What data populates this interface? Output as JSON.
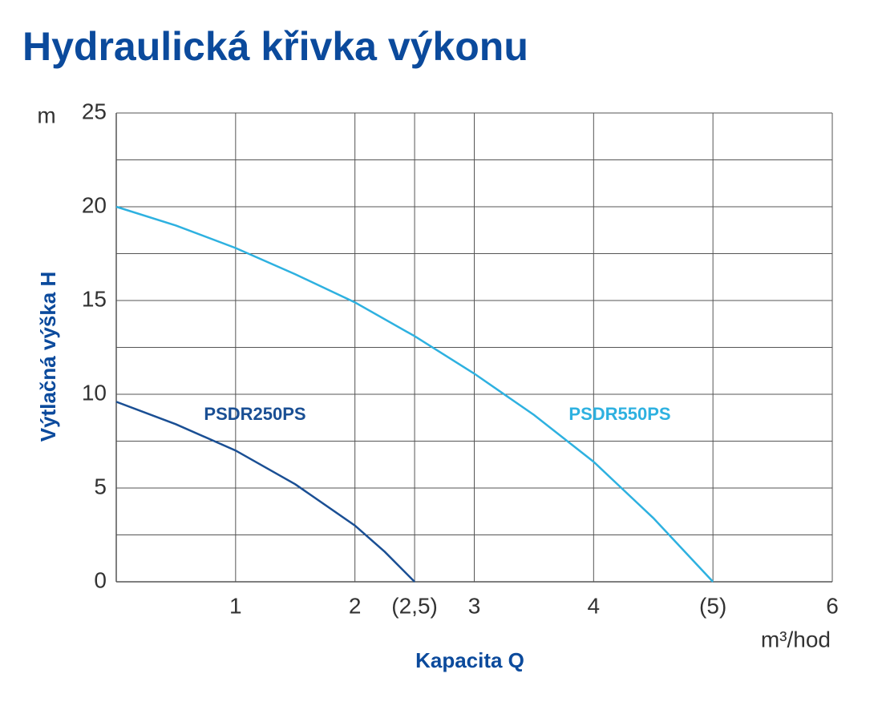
{
  "chart_data": {
    "type": "line",
    "title": "Hydraulická křivka výkonu",
    "y_label": "Výtlačná výška H",
    "y_unit": "m",
    "x_label": "Kapacita Q",
    "x_unit": "m³/hod",
    "xlim": [
      0,
      6
    ],
    "ylim": [
      0,
      25
    ],
    "xticks": [
      1,
      2,
      {
        "value": 2.5,
        "label": "(2,5)"
      },
      3,
      4,
      {
        "value": 5,
        "label": "(5)"
      },
      6
    ],
    "yticks": [
      0,
      5,
      10,
      15,
      20,
      25
    ],
    "grid": true,
    "series": [
      {
        "name": "PSDR250PS",
        "color": "#1a4f94",
        "x": [
          0,
          0.5,
          1,
          1.5,
          2,
          2.25,
          2.5
        ],
        "values": [
          9.6,
          8.4,
          7.0,
          5.2,
          3.0,
          1.6,
          0
        ]
      },
      {
        "name": "PSDR550PS",
        "color": "#2eb1e0",
        "x": [
          0,
          0.5,
          1,
          1.5,
          2,
          2.5,
          3,
          3.5,
          4,
          4.5,
          5
        ],
        "values": [
          20,
          19.0,
          17.8,
          16.4,
          14.9,
          13.1,
          11.1,
          8.9,
          6.4,
          3.4,
          0
        ]
      }
    ]
  }
}
